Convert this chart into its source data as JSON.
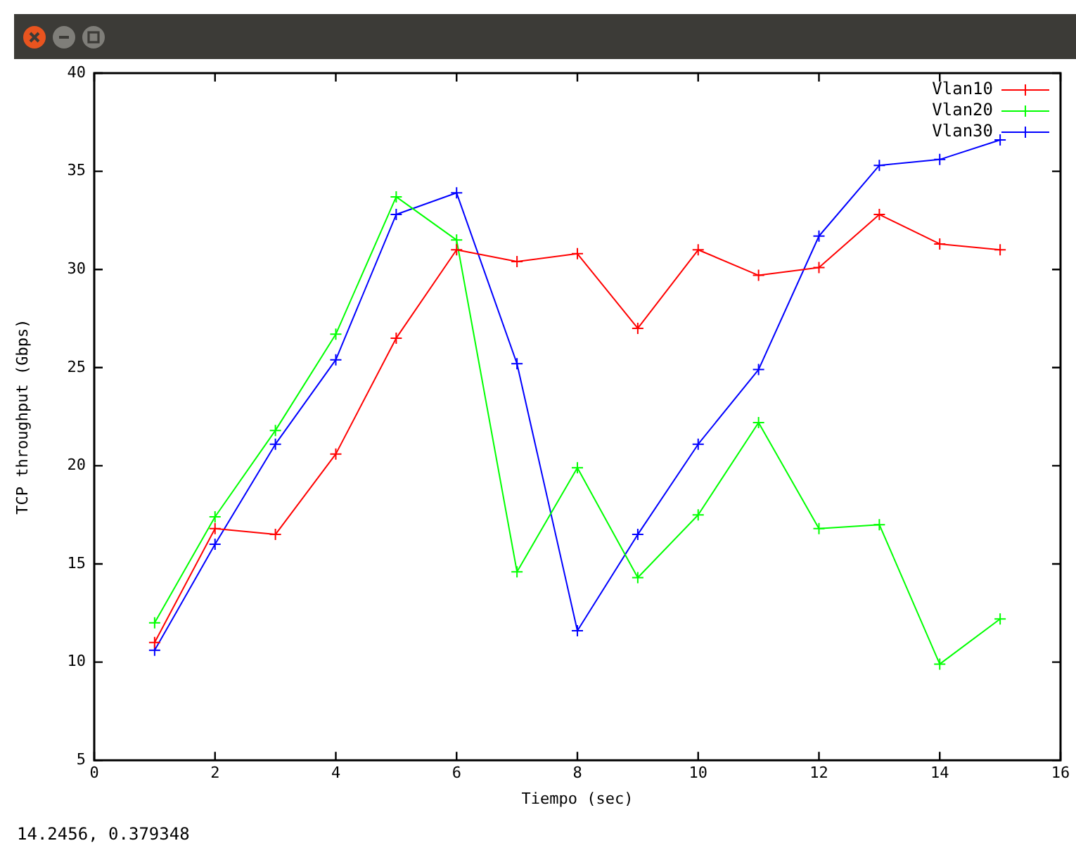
{
  "chart_data": {
    "type": "line",
    "xlabel": "Tiempo (sec)",
    "ylabel": "TCP throughput (Gbps)",
    "x": [
      1,
      2,
      3,
      4,
      5,
      6,
      7,
      8,
      9,
      10,
      11,
      12,
      13,
      14,
      15
    ],
    "series": [
      {
        "name": "Vlan10",
        "color": "#ff0000",
        "marker": "cross",
        "values": [
          11.0,
          16.8,
          16.5,
          20.6,
          26.5,
          31.0,
          30.4,
          30.8,
          27.0,
          31.0,
          29.7,
          30.1,
          32.8,
          31.3,
          31.0
        ]
      },
      {
        "name": "Vlan20",
        "color": "#00ff00",
        "marker": "cross",
        "values": [
          12.0,
          17.4,
          21.8,
          26.7,
          33.7,
          31.5,
          14.6,
          19.9,
          14.3,
          17.5,
          22.2,
          16.8,
          17.0,
          9.9,
          12.2
        ]
      },
      {
        "name": "Vlan30",
        "color": "#0000ff",
        "marker": "cross",
        "values": [
          10.6,
          16.0,
          21.1,
          25.4,
          32.8,
          33.9,
          25.2,
          11.6,
          16.5,
          21.1,
          24.9,
          31.7,
          35.3,
          35.6,
          36.6
        ]
      }
    ],
    "xlim": [
      0,
      16
    ],
    "xticks": [
      0,
      2,
      4,
      6,
      8,
      10,
      12,
      14,
      16
    ],
    "ylim": [
      5,
      40
    ],
    "yticks": [
      5,
      10,
      15,
      20,
      25,
      30,
      35,
      40
    ],
    "grid": false,
    "legend": "top right",
    "line_style": "solid",
    "annotations": [
      "14.2456,  0.379348"
    ]
  }
}
